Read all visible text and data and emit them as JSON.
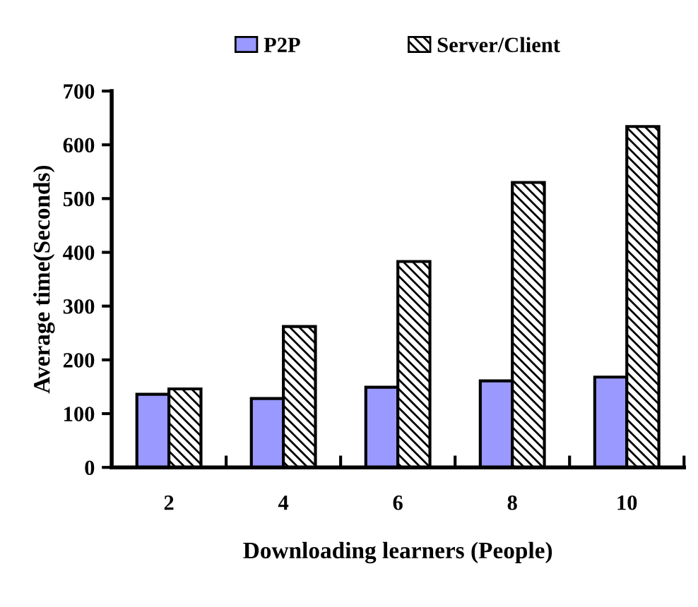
{
  "chart_data": {
    "type": "bar",
    "xlabel": "Downloading learners (People)",
    "ylabel": "Average time(Seconds)",
    "categories": [
      "2",
      "4",
      "6",
      "8",
      "10"
    ],
    "series": [
      {
        "name": "P2P",
        "color": "#9999ff",
        "values": [
          136,
          128,
          149,
          161,
          168
        ]
      },
      {
        "name": "Server/Client",
        "color": "#000000",
        "values": [
          146,
          262,
          383,
          530,
          634
        ]
      }
    ],
    "ylim": [
      0,
      700
    ],
    "yticks": [
      0,
      100,
      200,
      300,
      400,
      500,
      600,
      700
    ],
    "grid": false,
    "legend": "top"
  }
}
